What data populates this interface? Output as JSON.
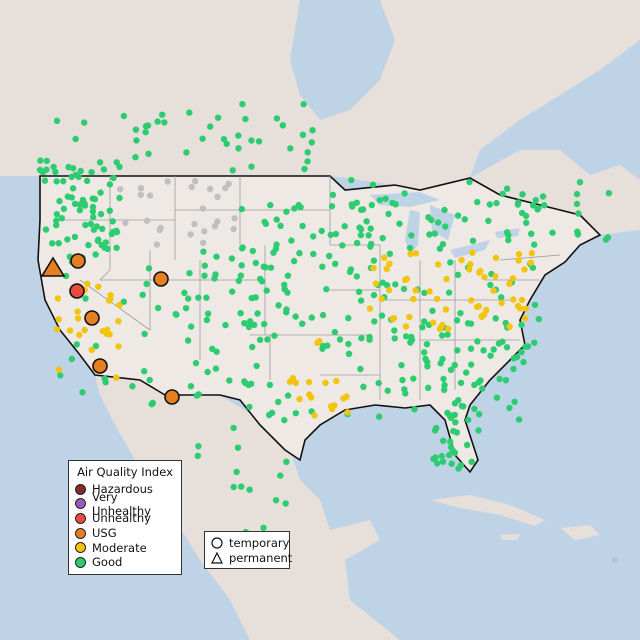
{
  "legend": {
    "title": "Air Quality Index",
    "categories": [
      {
        "label": "Hazardous",
        "color": "#7e2f2a"
      },
      {
        "label": "Very Unhealthy",
        "color": "#9b59b6"
      },
      {
        "label": "Unhealthy",
        "color": "#e74c3c"
      },
      {
        "label": "USG",
        "color": "#e67e22"
      },
      {
        "label": "Moderate",
        "color": "#f1c40f"
      },
      {
        "label": "Good",
        "color": "#2ecc71"
      }
    ],
    "types": [
      {
        "label": "temporary",
        "shape": "circle"
      },
      {
        "label": "permanent",
        "shape": "triangle"
      }
    ]
  },
  "colors": {
    "water": "#bfd3e6",
    "land_us": "#efe9e6",
    "land_other": "#e6dfda",
    "nodata": "#c0c0c0"
  },
  "highlighted_sites": [
    {
      "category": "USG",
      "type": "permanent"
    },
    {
      "category": "USG",
      "type": "temporary"
    },
    {
      "category": "Unhealthy",
      "type": "temporary"
    },
    {
      "category": "USG",
      "type": "temporary"
    },
    {
      "category": "USG",
      "type": "temporary"
    },
    {
      "category": "USG",
      "type": "temporary"
    },
    {
      "category": "USG",
      "type": "temporary"
    }
  ]
}
